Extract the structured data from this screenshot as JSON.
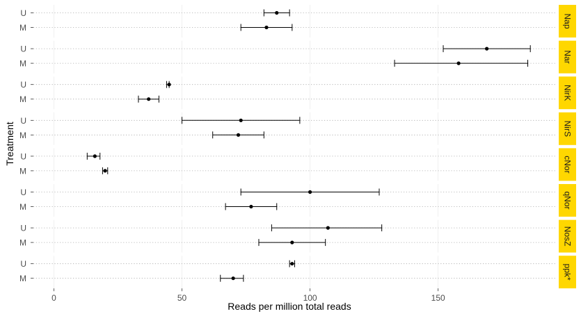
{
  "chart_data": {
    "type": "dot-errorbar",
    "xlabel": "Reads per million total reads",
    "ylabel": "Treatment",
    "xlim": [
      -8,
      196
    ],
    "xticks": [
      0,
      50,
      100,
      150
    ],
    "treatments": [
      "U",
      "M"
    ],
    "panels": [
      {
        "name": "Nap",
        "points": [
          {
            "treatment": "U",
            "value": 87,
            "low": 82,
            "high": 92
          },
          {
            "treatment": "M",
            "value": 83,
            "low": 73,
            "high": 93
          }
        ]
      },
      {
        "name": "Nar",
        "points": [
          {
            "treatment": "U",
            "value": 169,
            "low": 152,
            "high": 186
          },
          {
            "treatment": "M",
            "value": 158,
            "low": 133,
            "high": 185
          }
        ]
      },
      {
        "name": "NirK",
        "points": [
          {
            "treatment": "U",
            "value": 45,
            "low": 44,
            "high": 45
          },
          {
            "treatment": "M",
            "value": 37,
            "low": 33,
            "high": 41
          }
        ]
      },
      {
        "name": "NirS",
        "points": [
          {
            "treatment": "U",
            "value": 73,
            "low": 50,
            "high": 96
          },
          {
            "treatment": "M",
            "value": 72,
            "low": 62,
            "high": 82
          }
        ]
      },
      {
        "name": "cNor",
        "points": [
          {
            "treatment": "U",
            "value": 16,
            "low": 13,
            "high": 18
          },
          {
            "treatment": "M",
            "value": 20,
            "low": 19,
            "high": 21
          }
        ]
      },
      {
        "name": "qNor",
        "points": [
          {
            "treatment": "U",
            "value": 100,
            "low": 73,
            "high": 127
          },
          {
            "treatment": "M",
            "value": 77,
            "low": 67,
            "high": 87
          }
        ]
      },
      {
        "name": "NosZ",
        "points": [
          {
            "treatment": "U",
            "value": 107,
            "low": 85,
            "high": 128
          },
          {
            "treatment": "M",
            "value": 93,
            "low": 80,
            "high": 106
          }
        ]
      },
      {
        "name": "ppk*",
        "points": [
          {
            "treatment": "U",
            "value": 93,
            "low": 92,
            "high": 94
          },
          {
            "treatment": "M",
            "value": 70,
            "low": 65,
            "high": 74
          }
        ]
      }
    ],
    "strip_color": "#FFD700",
    "grid": "horizontal-dotted",
    "legend": "none"
  }
}
